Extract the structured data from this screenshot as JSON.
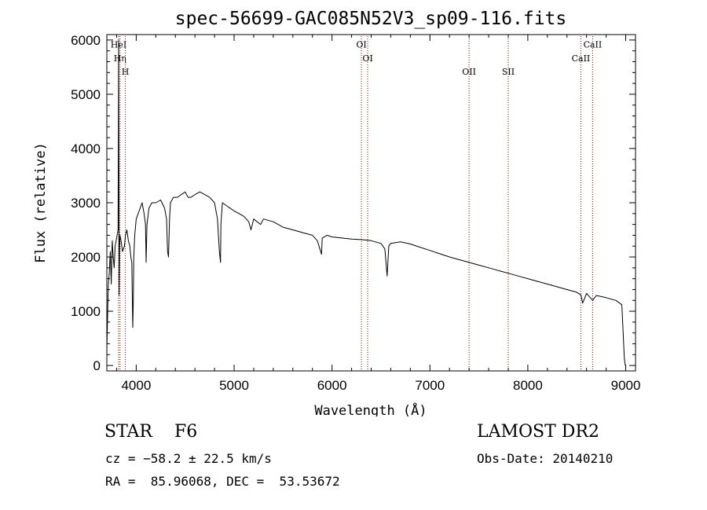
{
  "chart_data": {
    "type": "line",
    "title": "spec-56699-GAC085N52V3_sp09-116.fits",
    "xlabel": "Wavelength (Å)",
    "ylabel": "Flux (relative)",
    "xlim": [
      3700,
      9100
    ],
    "ylim": [
      -100,
      6100
    ],
    "x_ticks": [
      4000,
      5000,
      6000,
      7000,
      8000,
      9000
    ],
    "y_ticks": [
      0,
      1000,
      2000,
      3000,
      4000,
      5000,
      6000
    ],
    "grid": false,
    "series": [
      {
        "x": [
          3700,
          3715,
          3725,
          3735,
          3745,
          3755,
          3765,
          3775,
          3785,
          3795,
          3805,
          3815,
          3820,
          3825,
          3830,
          3835,
          3845,
          3860,
          3880,
          3890,
          3905,
          3920,
          3935,
          3945,
          3955,
          3965,
          3970,
          3975,
          3985,
          4000,
          4020,
          4040,
          4060,
          4080,
          4095,
          4101,
          4110,
          4130,
          4160,
          4200,
          4250,
          4290,
          4310,
          4320,
          4330,
          4340,
          4350,
          4380,
          4420,
          4460,
          4500,
          4530,
          4560,
          4600,
          4650,
          4700,
          4750,
          4800,
          4830,
          4850,
          4861,
          4865,
          4880,
          4920,
          4960,
          5000,
          5050,
          5100,
          5150,
          5172,
          5200,
          5270,
          5300,
          5400,
          5500,
          5600,
          5700,
          5800,
          5850,
          5893,
          5900,
          5950,
          6000,
          6100,
          6200,
          6300,
          6400,
          6500,
          6540,
          6563,
          6580,
          6600,
          6700,
          6800,
          6900,
          7000,
          7100,
          7200,
          7300,
          7400,
          7500,
          7600,
          7700,
          7800,
          7900,
          8000,
          8100,
          8200,
          8300,
          8400,
          8500,
          8542,
          8560,
          8600,
          8662,
          8700,
          8800,
          8900,
          8960,
          8985,
          8995
        ],
        "y": [
          300,
          1500,
          1700,
          2100,
          1500,
          2300,
          2000,
          1800,
          2200,
          2300,
          2400,
          2500,
          6000,
          1300,
          2200,
          2400,
          2300,
          2100,
          2200,
          2400,
          2500,
          2300,
          2200,
          2000,
          1900,
          700,
          1200,
          2000,
          2400,
          2700,
          2800,
          2900,
          3000,
          2800,
          2600,
          1900,
          2600,
          2900,
          3000,
          3000,
          3050,
          2900,
          2700,
          2100,
          2000,
          2700,
          3000,
          3100,
          3100,
          3150,
          3200,
          3100,
          3100,
          3150,
          3200,
          3150,
          3100,
          3000,
          2700,
          2100,
          1900,
          2600,
          3000,
          2950,
          2900,
          2850,
          2800,
          2750,
          2650,
          2500,
          2700,
          2600,
          2700,
          2650,
          2550,
          2500,
          2450,
          2400,
          2300,
          2050,
          2350,
          2400,
          2370,
          2350,
          2330,
          2320,
          2300,
          2250,
          2150,
          1650,
          2200,
          2250,
          2280,
          2240,
          2180,
          2120,
          2060,
          2000,
          1950,
          1900,
          1850,
          1800,
          1750,
          1700,
          1650,
          1600,
          1550,
          1500,
          1450,
          1400,
          1350,
          1300,
          1150,
          1330,
          1200,
          1290,
          1250,
          1200,
          1120,
          150,
          0
        ]
      }
    ],
    "spectral_lines": [
      {
        "label": "HeI",
        "x": 3820,
        "label_y": 5860
      },
      {
        "label": "Hη",
        "x": 3835,
        "label_y": 5610
      },
      {
        "label": "H",
        "x": 3889,
        "label_y": 5360
      },
      {
        "label": "OI",
        "x": 6300,
        "label_y": 5860
      },
      {
        "label": "OI",
        "x": 6364,
        "label_y": 5610
      },
      {
        "label": "OII",
        "x": 7400,
        "label_y": 5360
      },
      {
        "label": "SII",
        "x": 7800,
        "label_y": 5360
      },
      {
        "label": "CaII",
        "x": 8542,
        "label_y": 5610
      },
      {
        "label": "CaII",
        "x": 8662,
        "label_y": 5860
      }
    ]
  },
  "info": {
    "class_line": "STAR    F6",
    "cz": "cz = −58.2 ± 22.5 km/s",
    "radec": "RA =  85.96068, DEC =  53.53672",
    "survey": "LAMOST DR2",
    "obs_date": "Obs-Date: 20140210"
  },
  "colors": {
    "axis": "#000000",
    "spectrum": "#000000",
    "line_markers": "#8b0000"
  }
}
